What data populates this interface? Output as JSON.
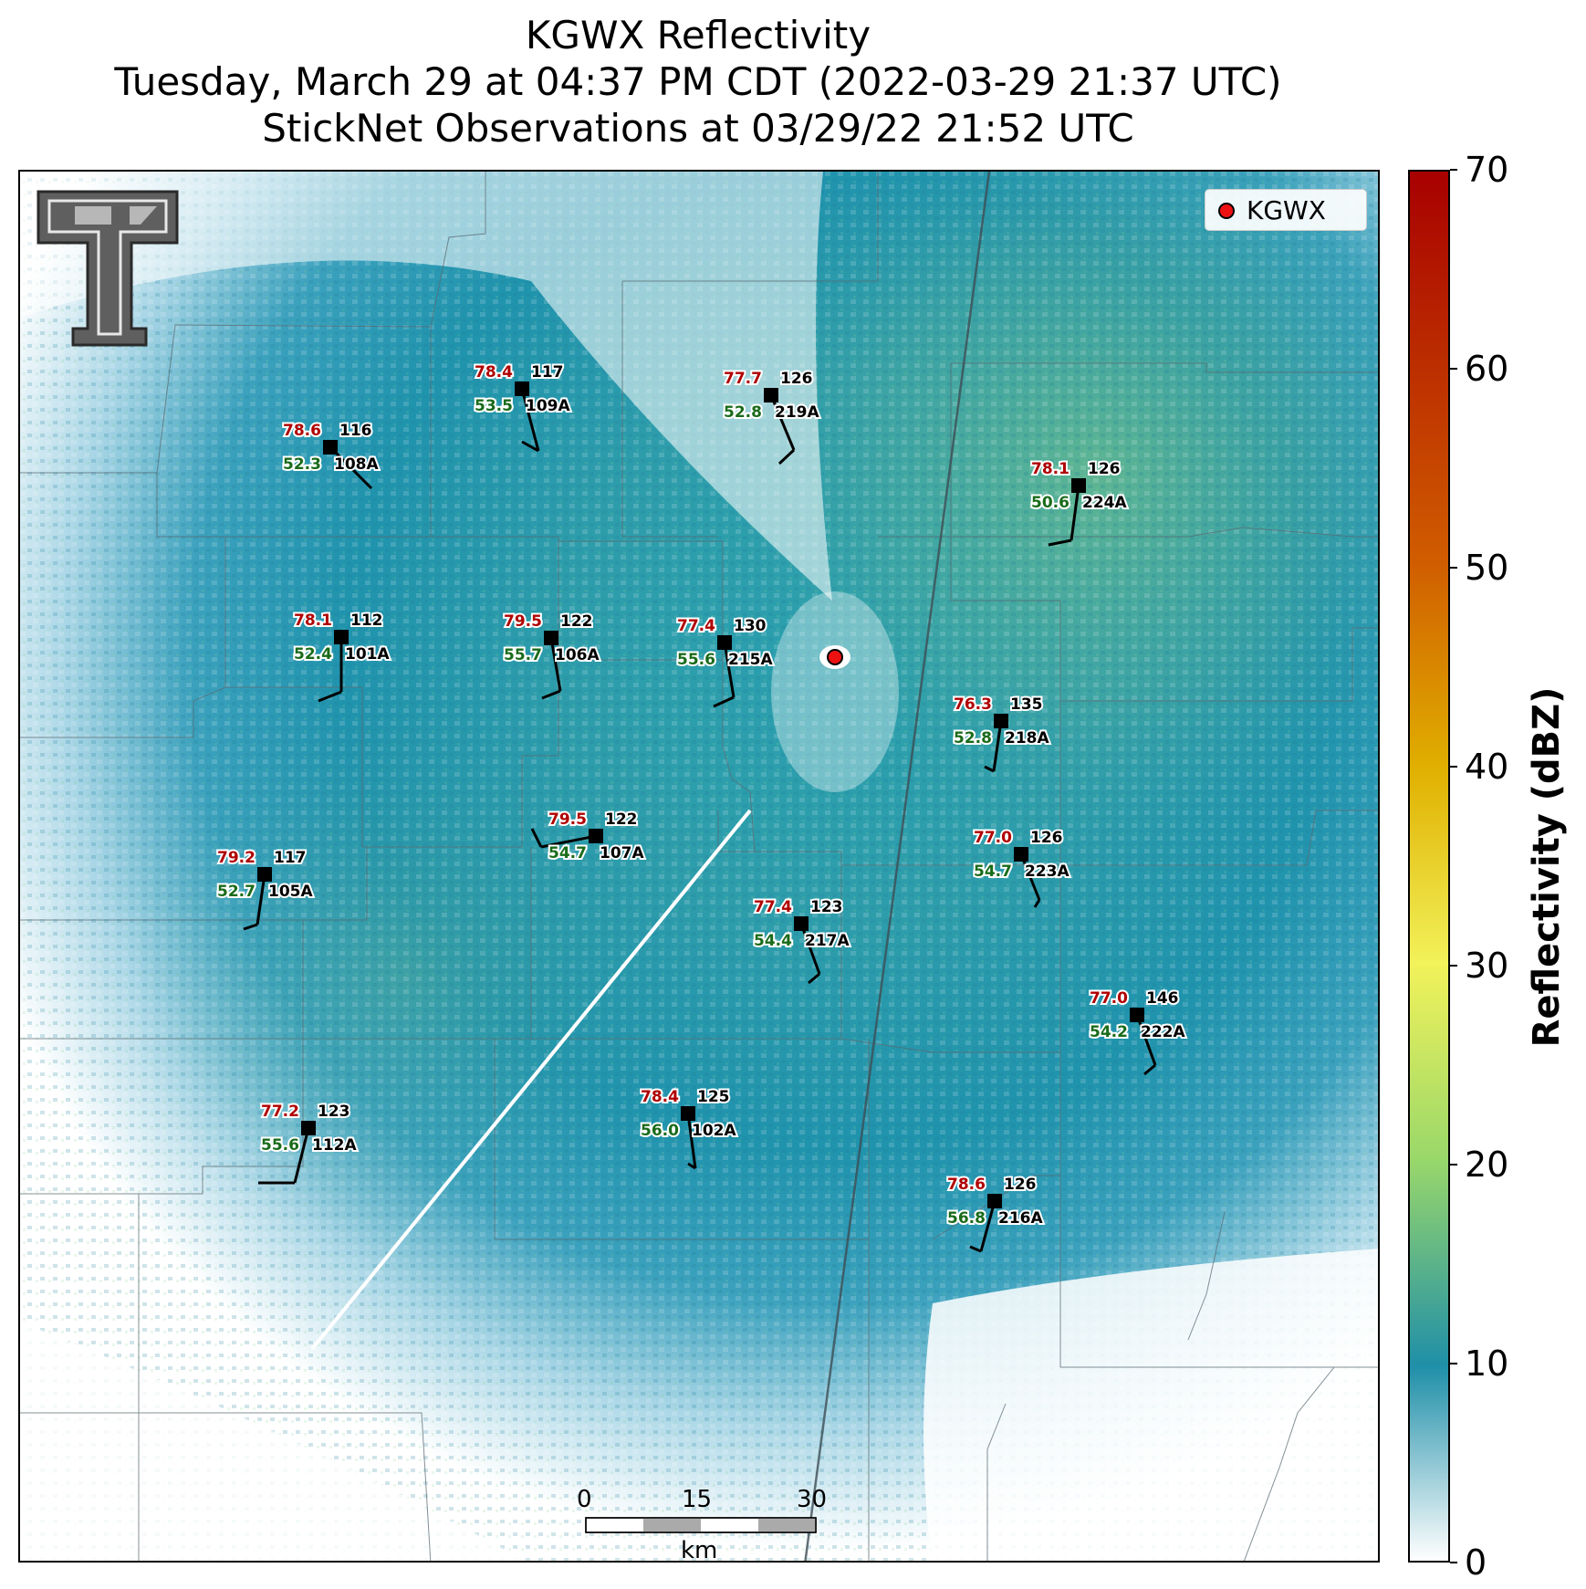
{
  "title": {
    "line1": "KGWX Reflectivity",
    "line2": "Tuesday, March 29 at 04:37 PM CDT (2022-03-29 21:37 UTC)",
    "line3": "StickNet Observations at 03/29/22 21:52 UTC"
  },
  "legend": {
    "label": "KGWX",
    "marker_color": "#ee1111"
  },
  "logo": {
    "name": "Texas Tech Double T",
    "color": "#666666"
  },
  "colorbar": {
    "label": "Reflectivity (dBZ)",
    "ticks": [
      "0",
      "10",
      "20",
      "30",
      "40",
      "50",
      "60",
      "70"
    ],
    "range": [
      0,
      70
    ],
    "colors": [
      "#ffffff",
      "#1f8fa8",
      "#9ad86a",
      "#f2f25a",
      "#e0b000",
      "#d05c00",
      "#a80000"
    ]
  },
  "scalebar": {
    "labels": [
      "0",
      "15",
      "30"
    ],
    "unit": "km"
  },
  "stations": [
    {
      "id": "109A",
      "temp": "78.4",
      "dew": "53.5",
      "pres": "117"
    },
    {
      "id": "219A",
      "temp": "77.7",
      "dew": "52.8",
      "pres": "126"
    },
    {
      "id": "108A",
      "temp": "78.6",
      "dew": "52.3",
      "pres": "116"
    },
    {
      "id": "224A",
      "temp": "78.1",
      "dew": "50.6",
      "pres": "126"
    },
    {
      "id": "101A",
      "temp": "78.1",
      "dew": "52.4",
      "pres": "112"
    },
    {
      "id": "106A",
      "temp": "79.5",
      "dew": "55.7",
      "pres": "122"
    },
    {
      "id": "215A",
      "temp": "77.4",
      "dew": "55.6",
      "pres": "130"
    },
    {
      "id": "218A",
      "temp": "76.3",
      "dew": "52.8",
      "pres": "135"
    },
    {
      "id": "107A",
      "temp": "79.5",
      "dew": "54.7",
      "pres": "122"
    },
    {
      "id": "223A",
      "temp": "77.0",
      "dew": "54.7",
      "pres": "126"
    },
    {
      "id": "105A",
      "temp": "79.2",
      "dew": "52.7",
      "pres": "117"
    },
    {
      "id": "217A",
      "temp": "77.4",
      "dew": "54.4",
      "pres": "123"
    },
    {
      "id": "222A",
      "temp": "77.0",
      "dew": "54.2",
      "pres": "146"
    },
    {
      "id": "102A",
      "temp": "78.4",
      "dew": "56.0",
      "pres": "125"
    },
    {
      "id": "112A",
      "temp": "77.2",
      "dew": "55.6",
      "pres": "123"
    },
    {
      "id": "216A",
      "temp": "78.6",
      "dew": "56.8",
      "pres": "126"
    }
  ]
}
